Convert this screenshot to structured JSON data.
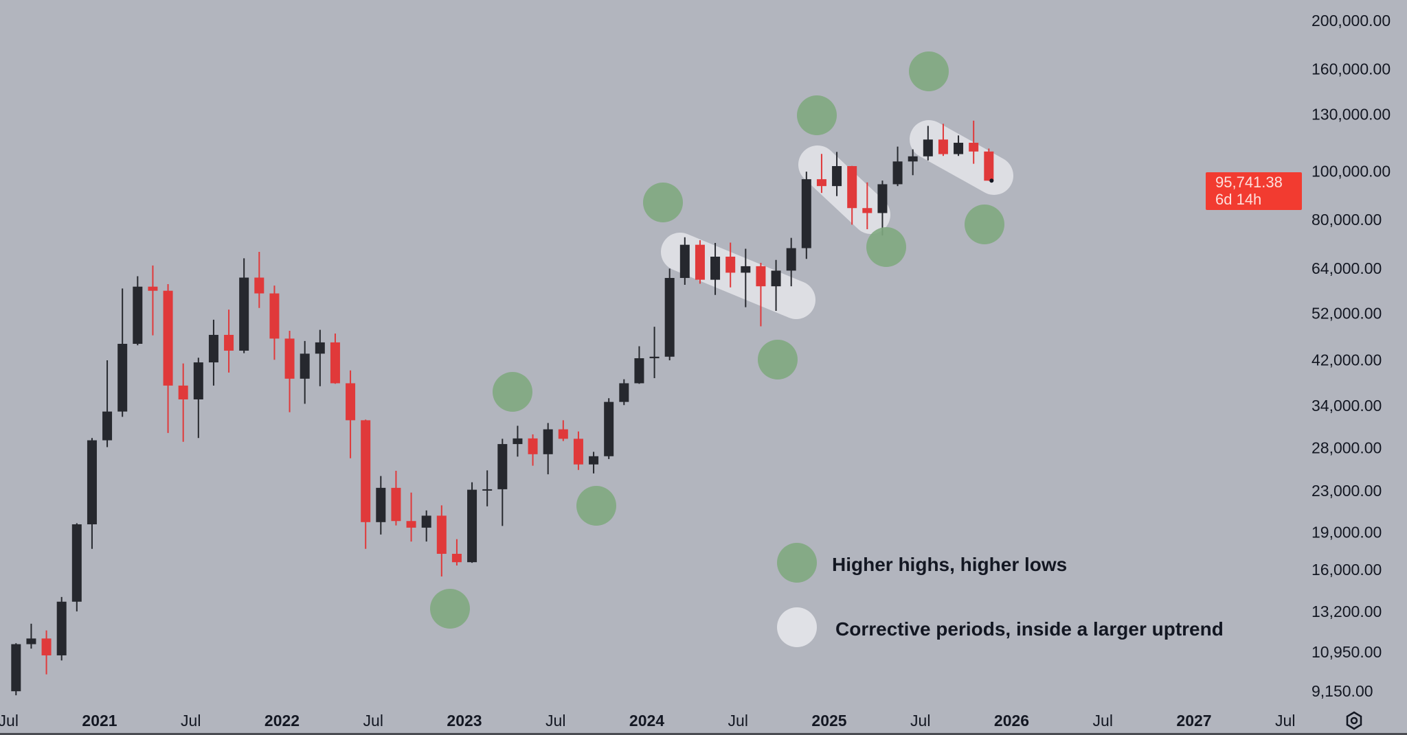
{
  "chart_data": {
    "type": "candlestick",
    "y_scale": "log",
    "ylim": [
      9150,
      200000
    ],
    "xlim": [
      "2020-07",
      "2027-08"
    ],
    "grid": false,
    "colors": {
      "up": "#26282e",
      "down": "#e0393a",
      "higher_marker": "#7fa97f",
      "corrective": "#e4e5ea",
      "price_label": "#f23b30"
    },
    "y_ticks": [
      "200,000.00",
      "160,000.00",
      "130,000.00",
      "100,000.00",
      "80,000.00",
      "64,000.00",
      "52,000.00",
      "42,000.00",
      "34,000.00",
      "28,000.00",
      "23,000.00",
      "19,000.00",
      "16,000.00",
      "13,200.00",
      "10,950.00",
      "9,150.00"
    ],
    "x_ticks": [
      {
        "label": "Jul",
        "date": 2020.5,
        "year": false
      },
      {
        "label": "2021",
        "date": 2021,
        "year": true
      },
      {
        "label": "Jul",
        "date": 2021.5,
        "year": false
      },
      {
        "label": "2022",
        "date": 2022,
        "year": true
      },
      {
        "label": "Jul",
        "date": 2022.5,
        "year": false
      },
      {
        "label": "2023",
        "date": 2023,
        "year": true
      },
      {
        "label": "Jul",
        "date": 2023.5,
        "year": false
      },
      {
        "label": "2024",
        "date": 2024,
        "year": true
      },
      {
        "label": "Jul",
        "date": 2024.5,
        "year": false
      },
      {
        "label": "2025",
        "date": 2025,
        "year": true
      },
      {
        "label": "Jul",
        "date": 2025.5,
        "year": false
      },
      {
        "label": "2026",
        "date": 2026,
        "year": true
      },
      {
        "label": "Jul",
        "date": 2026.5,
        "year": false
      },
      {
        "label": "2027",
        "date": 2027,
        "year": true
      },
      {
        "label": "Jul",
        "date": 2027.5,
        "year": false
      }
    ],
    "candles_monthly_ohlc": [
      [
        "2020-07",
        9140,
        11400,
        8970,
        11350
      ],
      [
        "2020-08",
        11350,
        12470,
        11120,
        11650
      ],
      [
        "2020-09",
        11650,
        12090,
        9880,
        10780
      ],
      [
        "2020-10",
        10780,
        14100,
        10530,
        13800
      ],
      [
        "2020-11",
        13800,
        19800,
        13200,
        19700
      ],
      [
        "2020-12",
        19700,
        29300,
        17600,
        29000
      ],
      [
        "2021-01",
        29000,
        41900,
        28100,
        33100
      ],
      [
        "2021-02",
        33100,
        58300,
        32300,
        45200
      ],
      [
        "2021-03",
        45200,
        61700,
        44900,
        58800
      ],
      [
        "2021-04",
        58800,
        64800,
        47000,
        57700
      ],
      [
        "2021-05",
        57700,
        59500,
        30000,
        37300
      ],
      [
        "2021-06",
        37300,
        41300,
        28800,
        35000
      ],
      [
        "2021-07",
        35000,
        42400,
        29300,
        41500
      ],
      [
        "2021-08",
        41500,
        50500,
        37300,
        47100
      ],
      [
        "2021-09",
        47100,
        52900,
        39600,
        43800
      ],
      [
        "2021-10",
        43800,
        67000,
        43300,
        61300
      ],
      [
        "2021-11",
        61300,
        69000,
        53300,
        57000
      ],
      [
        "2021-12",
        57000,
        59100,
        42000,
        46300
      ],
      [
        "2022-01",
        46300,
        48000,
        33000,
        38500
      ],
      [
        "2022-02",
        38500,
        45800,
        34300,
        43200
      ],
      [
        "2022-03",
        43200,
        48200,
        37200,
        45500
      ],
      [
        "2022-04",
        45500,
        47400,
        37600,
        37700
      ],
      [
        "2022-05",
        37700,
        40000,
        26700,
        31800
      ],
      [
        "2022-06",
        31800,
        31900,
        17600,
        19900
      ],
      [
        "2022-07",
        19900,
        24600,
        18800,
        23300
      ],
      [
        "2022-08",
        23300,
        25200,
        19600,
        20000
      ],
      [
        "2022-09",
        20000,
        22800,
        18200,
        19400
      ],
      [
        "2022-10",
        19400,
        21000,
        18200,
        20500
      ],
      [
        "2022-11",
        20500,
        21500,
        15500,
        17200
      ],
      [
        "2022-12",
        17200,
        18400,
        16300,
        16550
      ],
      [
        "2023-01",
        16550,
        23900,
        16500,
        23100
      ],
      [
        "2023-02",
        23100,
        25250,
        21400,
        23150
      ],
      [
        "2023-03",
        23150,
        29200,
        19550,
        28500
      ],
      [
        "2023-04",
        28500,
        31000,
        26900,
        29250
      ],
      [
        "2023-05",
        29250,
        29800,
        25800,
        27200
      ],
      [
        "2023-06",
        27200,
        31400,
        24800,
        30500
      ],
      [
        "2023-07",
        30500,
        31800,
        28900,
        29200
      ],
      [
        "2023-08",
        29200,
        30200,
        25300,
        25950
      ],
      [
        "2023-09",
        25950,
        27500,
        24900,
        26950
      ],
      [
        "2023-10",
        26950,
        35200,
        26600,
        34600
      ],
      [
        "2023-11",
        34600,
        38400,
        34100,
        37700
      ],
      [
        "2023-12",
        37700,
        44700,
        37600,
        42300
      ],
      [
        "2024-01",
        42300,
        48900,
        38600,
        42600
      ],
      [
        "2024-02",
        42600,
        63900,
        41900,
        61200
      ],
      [
        "2024-03",
        61200,
        73800,
        59300,
        71300
      ],
      [
        "2024-04",
        71300,
        72800,
        59600,
        60700
      ],
      [
        "2024-05",
        60700,
        71900,
        56600,
        67500
      ],
      [
        "2024-06",
        67500,
        72000,
        58600,
        62700
      ],
      [
        "2024-07",
        62700,
        70000,
        53500,
        64600
      ],
      [
        "2024-08",
        64600,
        65600,
        49000,
        58900
      ],
      [
        "2024-09",
        58900,
        66500,
        52600,
        63300
      ],
      [
        "2024-10",
        63300,
        73600,
        58900,
        70200
      ],
      [
        "2024-11",
        70200,
        99800,
        66800,
        96400
      ],
      [
        "2024-12",
        96400,
        108300,
        90500,
        93400
      ],
      [
        "2025-01",
        93400,
        109300,
        89200,
        102400
      ],
      [
        "2025-02",
        102400,
        102500,
        78200,
        84400
      ],
      [
        "2025-03",
        84400,
        95000,
        76600,
        82500
      ],
      [
        "2025-04",
        82500,
        95800,
        74400,
        94200
      ],
      [
        "2025-05",
        94200,
        112000,
        93400,
        104600
      ],
      [
        "2025-06",
        104600,
        110600,
        98200,
        107100
      ],
      [
        "2025-07",
        107100,
        123200,
        105100,
        115700
      ],
      [
        "2025-08",
        115700,
        124400,
        107300,
        108200
      ],
      [
        "2025-09",
        108200,
        117900,
        107300,
        114000
      ],
      [
        "2025-10",
        114000,
        126200,
        103500,
        109500
      ],
      [
        "2025-11",
        109500,
        111000,
        95700,
        95741.38
      ]
    ],
    "current_price": "95,741.38",
    "countdown": "6d 14h",
    "legend": [
      {
        "label": "Higher highs, higher lows",
        "marker": "green-circle"
      },
      {
        "label": "Corrective periods, inside a larger uptrend",
        "marker": "white-circle"
      }
    ]
  },
  "icons": {
    "settings": "gear-icon"
  }
}
